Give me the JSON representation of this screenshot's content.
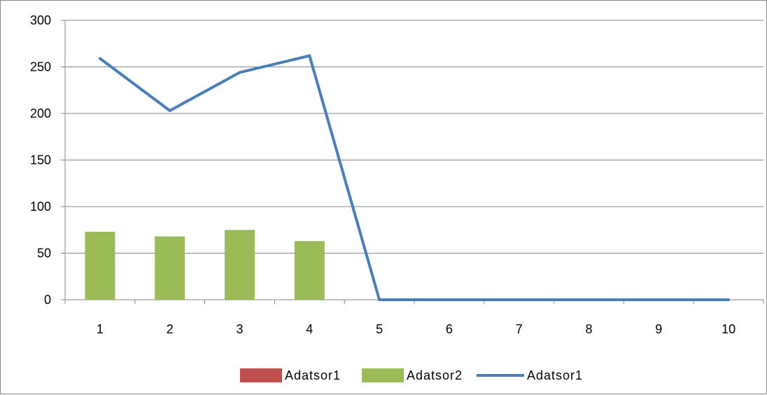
{
  "chart_data": {
    "type": "bar",
    "categories": [
      "1",
      "2",
      "3",
      "4",
      "5",
      "6",
      "7",
      "8",
      "9",
      "10"
    ],
    "series": [
      {
        "name": "Adatsor1",
        "kind": "bar",
        "color": "#c0504d",
        "values": [
          0,
          0,
          0,
          0,
          0,
          0,
          0,
          0,
          0,
          0
        ]
      },
      {
        "name": "Adatsor2",
        "kind": "bar",
        "color": "#9bbb59",
        "values": [
          73,
          68,
          75,
          63,
          0,
          0,
          0,
          0,
          0,
          0
        ]
      },
      {
        "name": "Adatsor1",
        "kind": "line",
        "color": "#4a7ebb",
        "values": [
          259,
          203,
          244,
          262,
          0,
          0,
          0,
          0,
          0,
          0
        ]
      }
    ],
    "y_ticks": [
      "0",
      "50",
      "100",
      "150",
      "200",
      "250",
      "300"
    ],
    "ylim": [
      0,
      300
    ],
    "grid": true,
    "legend": "bottom",
    "title": "",
    "xlabel": "",
    "ylabel": ""
  }
}
